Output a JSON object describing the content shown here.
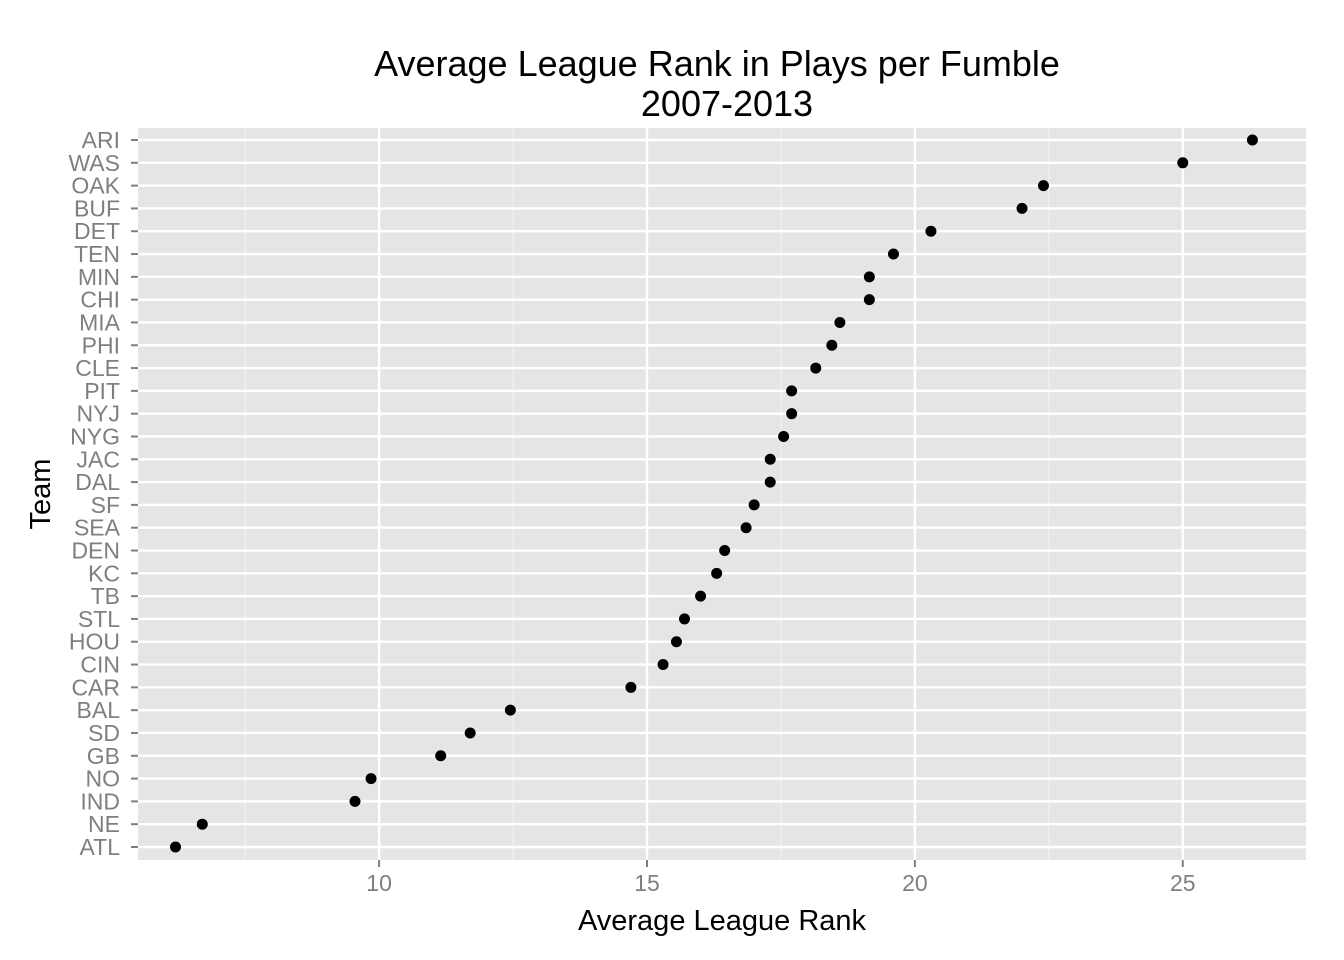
{
  "chart_data": {
    "type": "scatter",
    "title": "Average League Rank in Plays per Fumble",
    "subtitle": "2007-2013",
    "xlabel": "Average League Rank",
    "ylabel": "Team",
    "xlim": [
      5.5,
      27.3
    ],
    "x_ticks": [
      10,
      15,
      20,
      25
    ],
    "grid": true,
    "legend": "none",
    "colors": {
      "panel": "#e5e5e5",
      "grid_major": "#ffffff",
      "grid_minor": "#f2f2f2",
      "point": "#000000",
      "tick_text": "#7f7f7f"
    },
    "points": [
      {
        "team": "ARI",
        "value": 26.3
      },
      {
        "team": "WAS",
        "value": 25.0
      },
      {
        "team": "OAK",
        "value": 22.4
      },
      {
        "team": "BUF",
        "value": 22.0
      },
      {
        "team": "DET",
        "value": 20.3
      },
      {
        "team": "TEN",
        "value": 19.6
      },
      {
        "team": "MIN",
        "value": 19.15
      },
      {
        "team": "CHI",
        "value": 19.15
      },
      {
        "team": "MIA",
        "value": 18.6
      },
      {
        "team": "PHI",
        "value": 18.45
      },
      {
        "team": "CLE",
        "value": 18.15
      },
      {
        "team": "PIT",
        "value": 17.7
      },
      {
        "team": "NYJ",
        "value": 17.7
      },
      {
        "team": "NYG",
        "value": 17.55
      },
      {
        "team": "JAC",
        "value": 17.3
      },
      {
        "team": "DAL",
        "value": 17.3
      },
      {
        "team": "SF",
        "value": 17.0
      },
      {
        "team": "SEA",
        "value": 16.85
      },
      {
        "team": "DEN",
        "value": 16.45
      },
      {
        "team": "KC",
        "value": 16.3
      },
      {
        "team": "TB",
        "value": 16.0
      },
      {
        "team": "STL",
        "value": 15.7
      },
      {
        "team": "HOU",
        "value": 15.55
      },
      {
        "team": "CIN",
        "value": 15.3
      },
      {
        "team": "CAR",
        "value": 14.7
      },
      {
        "team": "BAL",
        "value": 12.45
      },
      {
        "team": "SD",
        "value": 11.7
      },
      {
        "team": "GB",
        "value": 11.15
      },
      {
        "team": "NO",
        "value": 9.85
      },
      {
        "team": "IND",
        "value": 9.55
      },
      {
        "team": "NE",
        "value": 6.7
      },
      {
        "team": "ATL",
        "value": 6.2
      }
    ]
  }
}
